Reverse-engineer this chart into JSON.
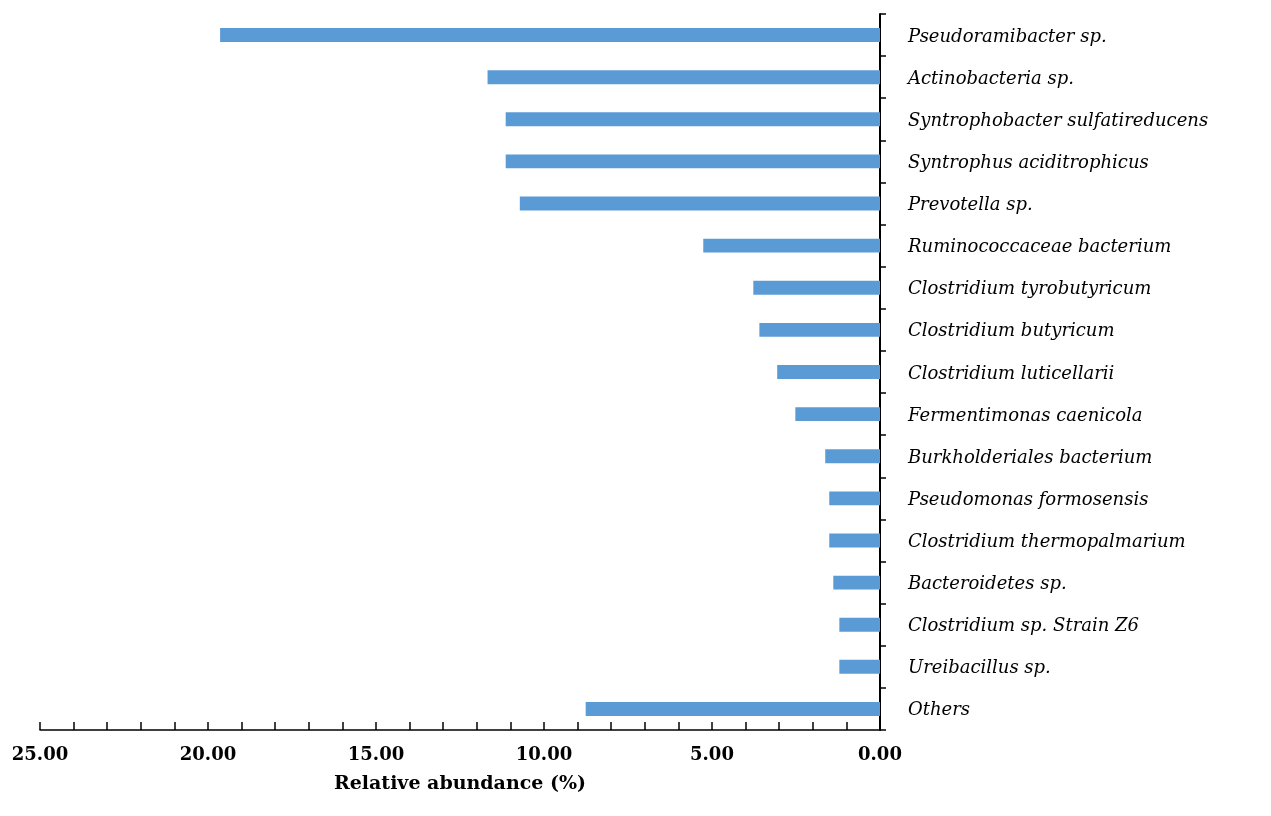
{
  "chart_data": {
    "type": "bar",
    "orientation": "horizontal",
    "xlabel": "Relative abundance (%)",
    "categories": [
      "Pseudoramibacter sp.",
      "Actinobacteria sp.",
      "Syntrophobacter sulfatireducens",
      "Syntrophus aciditrophicus",
      "Prevotella sp.",
      "Ruminococcaceae bacterium",
      "Clostridium tyrobutyricum",
      "Clostridium butyricum",
      "Clostridium luticellarii",
      "Fermentimonas caenicola",
      "Burkholderiales bacterium",
      "Pseudomonas formosensis",
      "Clostridium thermopalmarium",
      "Bacteroidetes sp.",
      "Clostridium sp. Strain Z6",
      "Ureibacillus sp.",
      "Others"
    ],
    "values": [
      19.64,
      11.68,
      11.14,
      11.14,
      10.72,
      5.26,
      3.77,
      3.59,
      3.06,
      2.52,
      1.63,
      1.51,
      1.51,
      1.39,
      1.21,
      1.21,
      8.76
    ],
    "color": "#5b9bd5",
    "xlim": [
      25,
      0
    ],
    "xticks": [
      {
        "value": 25,
        "label": "25.00"
      },
      {
        "value": 24,
        "label": null
      },
      {
        "value": 23,
        "label": null
      },
      {
        "value": 22,
        "label": null
      },
      {
        "value": 21,
        "label": null
      },
      {
        "value": 20,
        "label": "20.00"
      },
      {
        "value": 19,
        "label": null
      },
      {
        "value": 18,
        "label": null
      },
      {
        "value": 17,
        "label": null
      },
      {
        "value": 16,
        "label": null
      },
      {
        "value": 15,
        "label": "15.00"
      },
      {
        "value": 14,
        "label": null
      },
      {
        "value": 13,
        "label": null
      },
      {
        "value": 12,
        "label": null
      },
      {
        "value": 11,
        "label": null
      },
      {
        "value": 10,
        "label": "10.00"
      },
      {
        "value": 9,
        "label": null
      },
      {
        "value": 8,
        "label": null
      },
      {
        "value": 7,
        "label": null
      },
      {
        "value": 6,
        "label": null
      },
      {
        "value": 5,
        "label": "5.00"
      },
      {
        "value": 4,
        "label": null
      },
      {
        "value": 3,
        "label": null
      },
      {
        "value": 2,
        "label": null
      },
      {
        "value": 1,
        "label": null
      },
      {
        "value": 0,
        "label": "0.00"
      }
    ],
    "grid": false
  }
}
